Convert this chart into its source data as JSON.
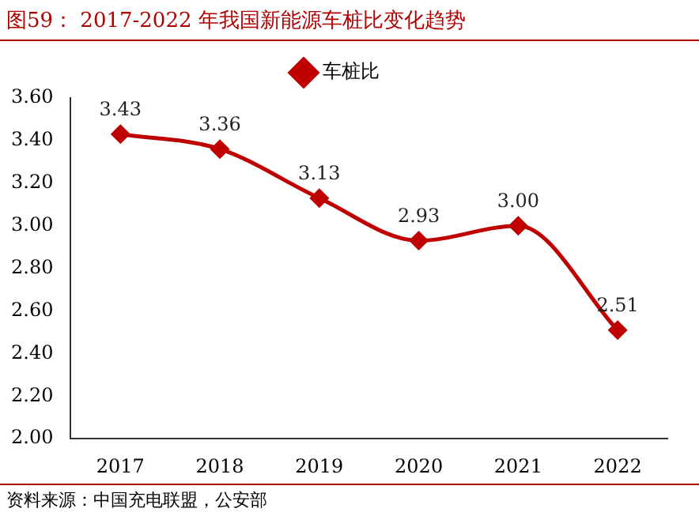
{
  "chart_data": {
    "type": "line",
    "title": "图59：  2017-2022 年我国新能源车桩比变化趋势",
    "categories": [
      "2017",
      "2018",
      "2019",
      "2020",
      "2021",
      "2022"
    ],
    "series": [
      {
        "name": "车桩比",
        "color": "#c00000",
        "values": [
          3.43,
          3.36,
          3.13,
          2.93,
          3.0,
          2.51
        ]
      }
    ],
    "ylim": [
      2.0,
      3.6
    ],
    "yticks": [
      {
        "value": 2.0,
        "label": "2.00"
      },
      {
        "value": 2.2,
        "label": "2.20"
      },
      {
        "value": 2.4,
        "label": "2.40"
      },
      {
        "value": 2.6,
        "label": "2.60"
      },
      {
        "value": 2.8,
        "label": "2.80"
      },
      {
        "value": 3.0,
        "label": "3.00"
      },
      {
        "value": 3.2,
        "label": "3.20"
      },
      {
        "value": 3.4,
        "label": "3.40"
      },
      {
        "value": 3.6,
        "label": "3.60"
      }
    ],
    "value_labels": [
      "3.43",
      "3.36",
      "3.13",
      "2.93",
      "3.00",
      "2.51"
    ],
    "legend": "top",
    "marker": "diamond",
    "grid": false,
    "annotations": [
      "资料来源：中国充电联盟，公安部"
    ]
  }
}
